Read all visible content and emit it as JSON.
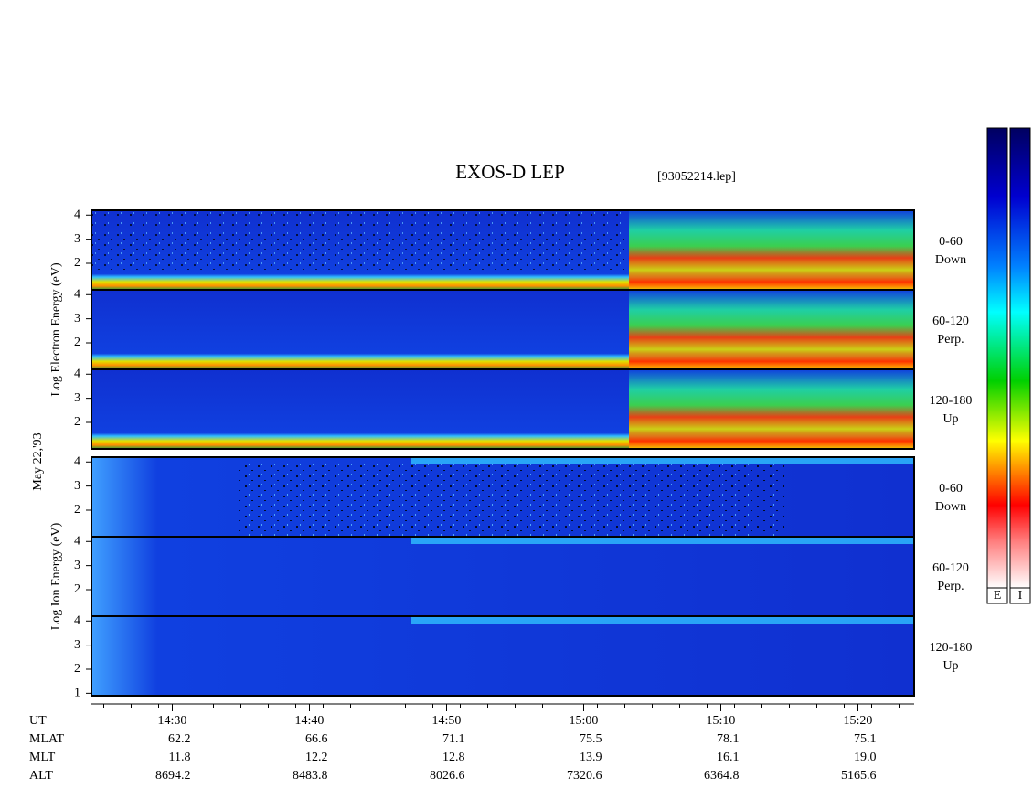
{
  "chart_data": {
    "type": "spectrogram",
    "title": "EXOS-D LEP",
    "subtitle": "[93052214.lep]",
    "date_label": "May 22,'93",
    "xlim": [
      864.1,
      924.1
    ],
    "xticks": [
      {
        "value": 870,
        "label": "14:30"
      },
      {
        "value": 880,
        "label": "14:40"
      },
      {
        "value": 890,
        "label": "14:50"
      },
      {
        "value": 900,
        "label": "15:00"
      },
      {
        "value": 910,
        "label": "15:10"
      },
      {
        "value": 920,
        "label": "15:20"
      }
    ],
    "ephemeris": [
      {
        "name": "UT"
      },
      {
        "name": "MLAT",
        "values": [
          62.2,
          66.6,
          71.1,
          75.5,
          78.1,
          75.1
        ]
      },
      {
        "name": "MLT",
        "values": [
          11.8,
          12.2,
          12.8,
          13.9,
          16.1,
          19.0
        ],
        "value_labels": [
          "11.8",
          "12.2",
          "12.8",
          "13.9",
          "16.1",
          "19.0"
        ]
      },
      {
        "name": "ALT",
        "values": [
          8694.2,
          8483.8,
          8026.6,
          7320.6,
          6364.8,
          5165.6
        ]
      }
    ],
    "groups": [
      {
        "species": "electron",
        "ylabel": "Log Electron Energy (eV)",
        "panels": [
          {
            "label": [
              "0-60",
              "Down"
            ],
            "ylim": [
              0.9,
              4.2
            ],
            "yticks": [
              2,
              3,
              4
            ]
          },
          {
            "label": [
              "60-120",
              "Perp."
            ],
            "ylim": [
              0.9,
              4.2
            ],
            "yticks": [
              2,
              3,
              4
            ]
          },
          {
            "label": [
              "120-180",
              "Up"
            ],
            "ylim": [
              0.9,
              4.2
            ],
            "yticks": [
              2,
              3,
              4
            ]
          }
        ]
      },
      {
        "species": "ion",
        "ylabel": "Log Ion Energy (eV)",
        "panels": [
          {
            "label": [
              "0-60",
              "Down"
            ],
            "ylim": [
              0.9,
              4.2
            ],
            "yticks": [
              2,
              3,
              4
            ]
          },
          {
            "label": [
              "60-120",
              "Perp."
            ],
            "ylim": [
              0.9,
              4.2
            ],
            "yticks": [
              2,
              3,
              4
            ]
          },
          {
            "label": [
              "120-180",
              "Up"
            ],
            "ylim": [
              0.9,
              4.2
            ],
            "yticks": [
              1,
              2,
              3,
              4
            ]
          }
        ]
      }
    ],
    "colorbars": [
      "E",
      "I"
    ]
  }
}
